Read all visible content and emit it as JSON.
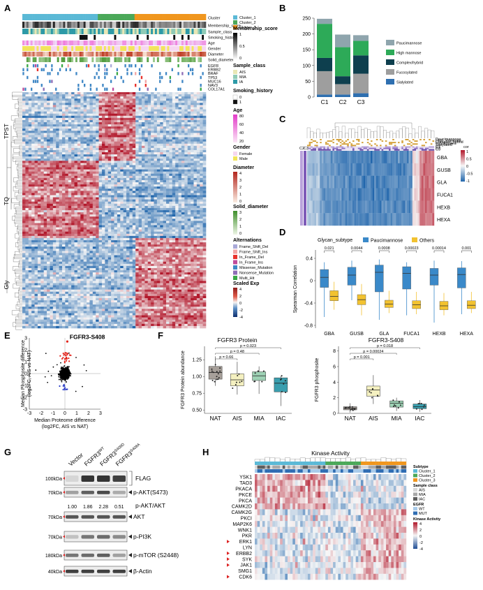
{
  "panels": {
    "A": {
      "label": "A",
      "row_annotations": [
        "Cluster",
        "Membership_score",
        "Sample_class",
        "Smoking_history",
        "Age",
        "Gender",
        "Diameter",
        "Solid_diameter"
      ],
      "gene_annotations": [
        "EGFR",
        "ERBB2",
        "BRAF",
        "TP53",
        "MUC16",
        "NAV3",
        "COL17A1"
      ],
      "row_groups": [
        "TPST",
        "TQ",
        "Gly"
      ],
      "legend": {
        "cluster_items": [
          {
            "label": "Cluster_1",
            "color": "#5BB9D6"
          },
          {
            "label": "Cluster_2",
            "color": "#4BA859"
          },
          {
            "label": "Cluster_3",
            "color": "#F0961E"
          }
        ],
        "membership_title": "Membership_score",
        "membership_ticks": [
          "1",
          "0.5",
          "0"
        ],
        "sample_class_title": "Sample_class",
        "sample_class_items": [
          {
            "label": "AIS",
            "color": "#E8E7B5"
          },
          {
            "label": "MIA",
            "color": "#8FCBB6"
          },
          {
            "label": "IA",
            "color": "#2D9AA7"
          }
        ],
        "smoking_title": "Smoking_history",
        "smoking_items": [
          {
            "label": "0",
            "color": "#FFFFFF"
          },
          {
            "label": "1",
            "color": "#111111"
          }
        ],
        "age_title": "Age",
        "age_ticks": [
          "80",
          "60",
          "40",
          "20"
        ],
        "gender_title": "Gender",
        "gender_items": [
          {
            "label": "Female",
            "color": "#F6D7F0"
          },
          {
            "label": "Male",
            "color": "#F2E45C"
          }
        ],
        "diameter_title": "Diameter",
        "diameter_ticks": [
          "4",
          "3",
          "2",
          "1",
          "0"
        ],
        "solid_title": "Solid_diameter",
        "solid_ticks": [
          "3",
          "2",
          "1",
          "0"
        ],
        "alt_title": "Alternations",
        "alt_items": [
          {
            "label": "Frame_Shift_Del",
            "color": "#A9A9D8"
          },
          {
            "label": "Frame_Shift_Ins",
            "color": "#F2A6A6"
          },
          {
            "label": "In_Frame_Del",
            "color": "#E8322C"
          },
          {
            "label": "In_Frame_Ins",
            "color": "#C04B9A"
          },
          {
            "label": "Missense_Mutation",
            "color": "#3F87C5"
          },
          {
            "label": "Nonsense_Mutation",
            "color": "#8E6DB6"
          },
          {
            "label": "Multi_Hit",
            "color": "#3AA846"
          }
        ],
        "scaled_title": "Scaled Exp",
        "scaled_ticks": [
          "4",
          "2",
          "0",
          "-2",
          "-4"
        ]
      }
    },
    "B": {
      "label": "B",
      "chart_data": {
        "type": "bar",
        "stacked": true,
        "categories": [
          "C1",
          "C2",
          "C3"
        ],
        "ylim": [
          0,
          250
        ],
        "yticks": [
          0,
          50,
          100,
          150,
          200,
          250
        ],
        "series": [
          {
            "name": "Sialylated",
            "color": "#2E6FB0",
            "values": [
              8,
              8,
              12
            ]
          },
          {
            "name": "Fucosylated",
            "color": "#9E9E9E",
            "values": [
              74,
              33,
              62
            ]
          },
          {
            "name": "Complex/hybrid",
            "color": "#0E3F4E",
            "values": [
              42,
              25,
              58
            ]
          },
          {
            "name": "High mannose",
            "color": "#2DAA58",
            "values": [
              108,
              92,
              46
            ]
          },
          {
            "name": "Paucimannose",
            "color": "#8FA5AD",
            "values": [
              16,
              40,
              18
            ]
          }
        ]
      }
    },
    "C": {
      "label": "C",
      "top_annotations": [
        "Paucimannose",
        "High_mannose",
        "Complex_hybrid",
        "Fucosylated",
        "Sialylated",
        "C1",
        "C2",
        "C3"
      ],
      "left_annotations": [
        "C2",
        "C3"
      ],
      "genes": [
        "GBA",
        "GUSB",
        "GLA",
        "FUCA1",
        "HEXB",
        "HEXA"
      ],
      "legend_title": "cor",
      "legend_ticks": [
        "1",
        "0.5",
        "0",
        "-0.5",
        "-1"
      ]
    },
    "D": {
      "label": "D",
      "legend_title": "Glycan_subtype",
      "legend_items": [
        {
          "label": "Paucimannose",
          "color": "#3A89C9"
        },
        {
          "label": "Others",
          "color": "#F2C230"
        }
      ],
      "ylabel": "Spearman Correlation",
      "chart_data": {
        "type": "box",
        "categories": [
          "GBA",
          "GUSB",
          "GLA",
          "FUCA1",
          "HEXB",
          "HEXA"
        ],
        "pvalues": [
          "0.021",
          "0.0044",
          "0.0008",
          "0.00023",
          "0.00014",
          "0.001"
        ],
        "yticks": [
          0.4,
          0.0,
          -0.4,
          -0.8
        ],
        "ylim": [
          -0.85,
          0.55
        ],
        "series": [
          {
            "name": "Paucimannose",
            "color": "#3A89C9",
            "boxes": [
              {
                "min": -0.65,
                "q1": -0.12,
                "median": 0.06,
                "q3": 0.2,
                "max": 0.33
              },
              {
                "min": -0.35,
                "q1": -0.08,
                "median": 0.1,
                "q3": 0.24,
                "max": 0.36
              },
              {
                "min": -0.7,
                "q1": -0.2,
                "median": 0.15,
                "q3": 0.28,
                "max": 0.38
              },
              {
                "min": -0.62,
                "q1": -0.15,
                "median": 0.13,
                "q3": 0.25,
                "max": 0.33
              },
              {
                "min": -0.75,
                "q1": -0.08,
                "median": 0.1,
                "q3": 0.22,
                "max": 0.36
              },
              {
                "min": -0.6,
                "q1": -0.13,
                "median": 0.11,
                "q3": 0.23,
                "max": 0.35
              }
            ]
          },
          {
            "name": "Others",
            "color": "#F2C230",
            "boxes": [
              {
                "min": -0.52,
                "q1": -0.36,
                "median": -0.28,
                "q3": -0.18,
                "max": -0.02
              },
              {
                "min": -0.62,
                "q1": -0.43,
                "median": -0.34,
                "q3": -0.25,
                "max": -0.06
              },
              {
                "min": -0.58,
                "q1": -0.48,
                "median": -0.42,
                "q3": -0.35,
                "max": -0.18
              },
              {
                "min": -0.6,
                "q1": -0.5,
                "median": -0.43,
                "q3": -0.36,
                "max": -0.2
              },
              {
                "min": -0.62,
                "q1": -0.52,
                "median": -0.45,
                "q3": -0.37,
                "max": -0.22
              },
              {
                "min": -0.58,
                "q1": -0.5,
                "median": -0.44,
                "q3": -0.36,
                "max": -0.2
              }
            ]
          }
        ]
      }
    },
    "E": {
      "label": "E",
      "highlight": "FGFR3-S408",
      "ylabel": [
        "Median Phosphosite difference",
        "(log2FC, AIS vs NAT)"
      ],
      "xlabel": [
        "Median Proteome difference",
        "(log2FC, AIS vs NAT)"
      ],
      "chart_data": {
        "type": "scatter",
        "xticks": [
          -3,
          -2,
          -1,
          0,
          1,
          2,
          3
        ],
        "yticks": [
          -3,
          -2,
          -1,
          0,
          1,
          2,
          3
        ],
        "xlim": [
          -3,
          3
        ],
        "ylim": [
          -3,
          3
        ]
      }
    },
    "F": {
      "label": "F",
      "charts": [
        {
          "title": "FGFR3 Protein",
          "ylabel": "FGFR3 Protein abundance",
          "categories": [
            "NAT",
            "AIS",
            "MIA",
            "IAC"
          ],
          "colors": [
            "#A7A09A",
            "#F4F0C0",
            "#9DD1B4",
            "#3A9EAE"
          ],
          "yticks": [
            1.25,
            1.0,
            0.75,
            0.5
          ],
          "ylim": [
            0.45,
            1.45
          ],
          "pvalues": [
            "p = 0.023",
            "p = 0.48",
            "p = 0.66"
          ],
          "boxes": [
            {
              "min": 0.86,
              "q1": 0.96,
              "median": 1.06,
              "q3": 1.15,
              "max": 1.3
            },
            {
              "min": 0.73,
              "q1": 0.86,
              "median": 0.95,
              "q3": 1.04,
              "max": 1.22
            },
            {
              "min": 0.74,
              "q1": 0.94,
              "median": 1.01,
              "q3": 1.07,
              "max": 1.15
            },
            {
              "min": 0.56,
              "q1": 0.77,
              "median": 0.9,
              "q3": 0.98,
              "max": 1.01
            }
          ]
        },
        {
          "title": "FGFR3-S408",
          "ylabel": "FGFR3 phosphosite",
          "categories": [
            "NAT",
            "AIS",
            "MIA",
            "IAC"
          ],
          "colors": [
            "#A7A09A",
            "#F4F0C0",
            "#9DD1B4",
            "#3A9EAE"
          ],
          "yticks": [
            8,
            6,
            4,
            2,
            0
          ],
          "ylim": [
            0,
            8.6
          ],
          "pvalues": [
            "p = 0.018",
            "p = 0.00024",
            "p = 0.001"
          ],
          "boxes": [
            {
              "min": 0.1,
              "q1": 0.45,
              "median": 0.65,
              "q3": 0.85,
              "max": 1.3
            },
            {
              "min": 1.2,
              "q1": 2.2,
              "median": 3.0,
              "q3": 3.5,
              "max": 4.9
            },
            {
              "min": 0.3,
              "q1": 0.8,
              "median": 1.3,
              "q3": 1.6,
              "max": 2.0
            },
            {
              "min": 0.2,
              "q1": 0.6,
              "median": 0.85,
              "q3": 1.2,
              "max": 1.7
            }
          ]
        }
      ]
    },
    "G": {
      "label": "G",
      "lanes": [
        "Vector",
        "FGFR3",
        "FGFR3",
        "FGFR3"
      ],
      "lane_superscripts": [
        "",
        "WT",
        "S408D",
        "S408A"
      ],
      "markers": [
        "100kDa",
        "70kDa",
        "70kDa",
        "70kDa",
        "180kDa",
        "40kDa"
      ],
      "bands": [
        "FLAG",
        "p-AKT(S473)",
        "AKT",
        "p-PI3K",
        "p-mTOR (S2448)",
        "β-Actin"
      ],
      "ratio_label": "p-AKT/AKT",
      "ratios": [
        "1.00",
        "1.86",
        "2.28",
        "0.51"
      ]
    },
    "H": {
      "label": "H",
      "title": "Kinase Activity",
      "kinases": [
        "YSK1",
        "TAO3",
        "PKACA",
        "PKCE",
        "PKCA",
        "CAMK2D",
        "CAMK2G",
        "PKCI",
        "MAP2K6",
        "WNK1",
        "PKR",
        "ERK1",
        "LYN",
        "ERBB2",
        "SYK",
        "JAK1",
        "SMG1",
        "CDK6"
      ],
      "marked": [
        "ERK1",
        "ERBB2",
        "SYK",
        "JAK1",
        "CDK6"
      ],
      "legend": {
        "subtype_title": "Subtype",
        "subtype_items": [
          {
            "label": "Cluster_1",
            "color": "#5BB9D6"
          },
          {
            "label": "Cluster_2",
            "color": "#4BA859"
          },
          {
            "label": "Cluster_3",
            "color": "#F0961E"
          }
        ],
        "sample_title": "Sample class",
        "sample_items": [
          {
            "label": "AIS",
            "color": "#D9D9D9"
          },
          {
            "label": "MIA",
            "color": "#A8A8A8"
          },
          {
            "label": "IAC",
            "color": "#5E5E5E"
          }
        ],
        "egfr_title": "EGFR",
        "egfr_items": [
          {
            "label": "WT",
            "color": "#A9CBEA"
          },
          {
            "label": "MUT",
            "color": "#2F6DB3"
          }
        ],
        "kinase_title": "Kinase Activity",
        "kinase_ticks": [
          "4",
          "2",
          "0",
          "-2",
          "-4"
        ]
      }
    }
  }
}
